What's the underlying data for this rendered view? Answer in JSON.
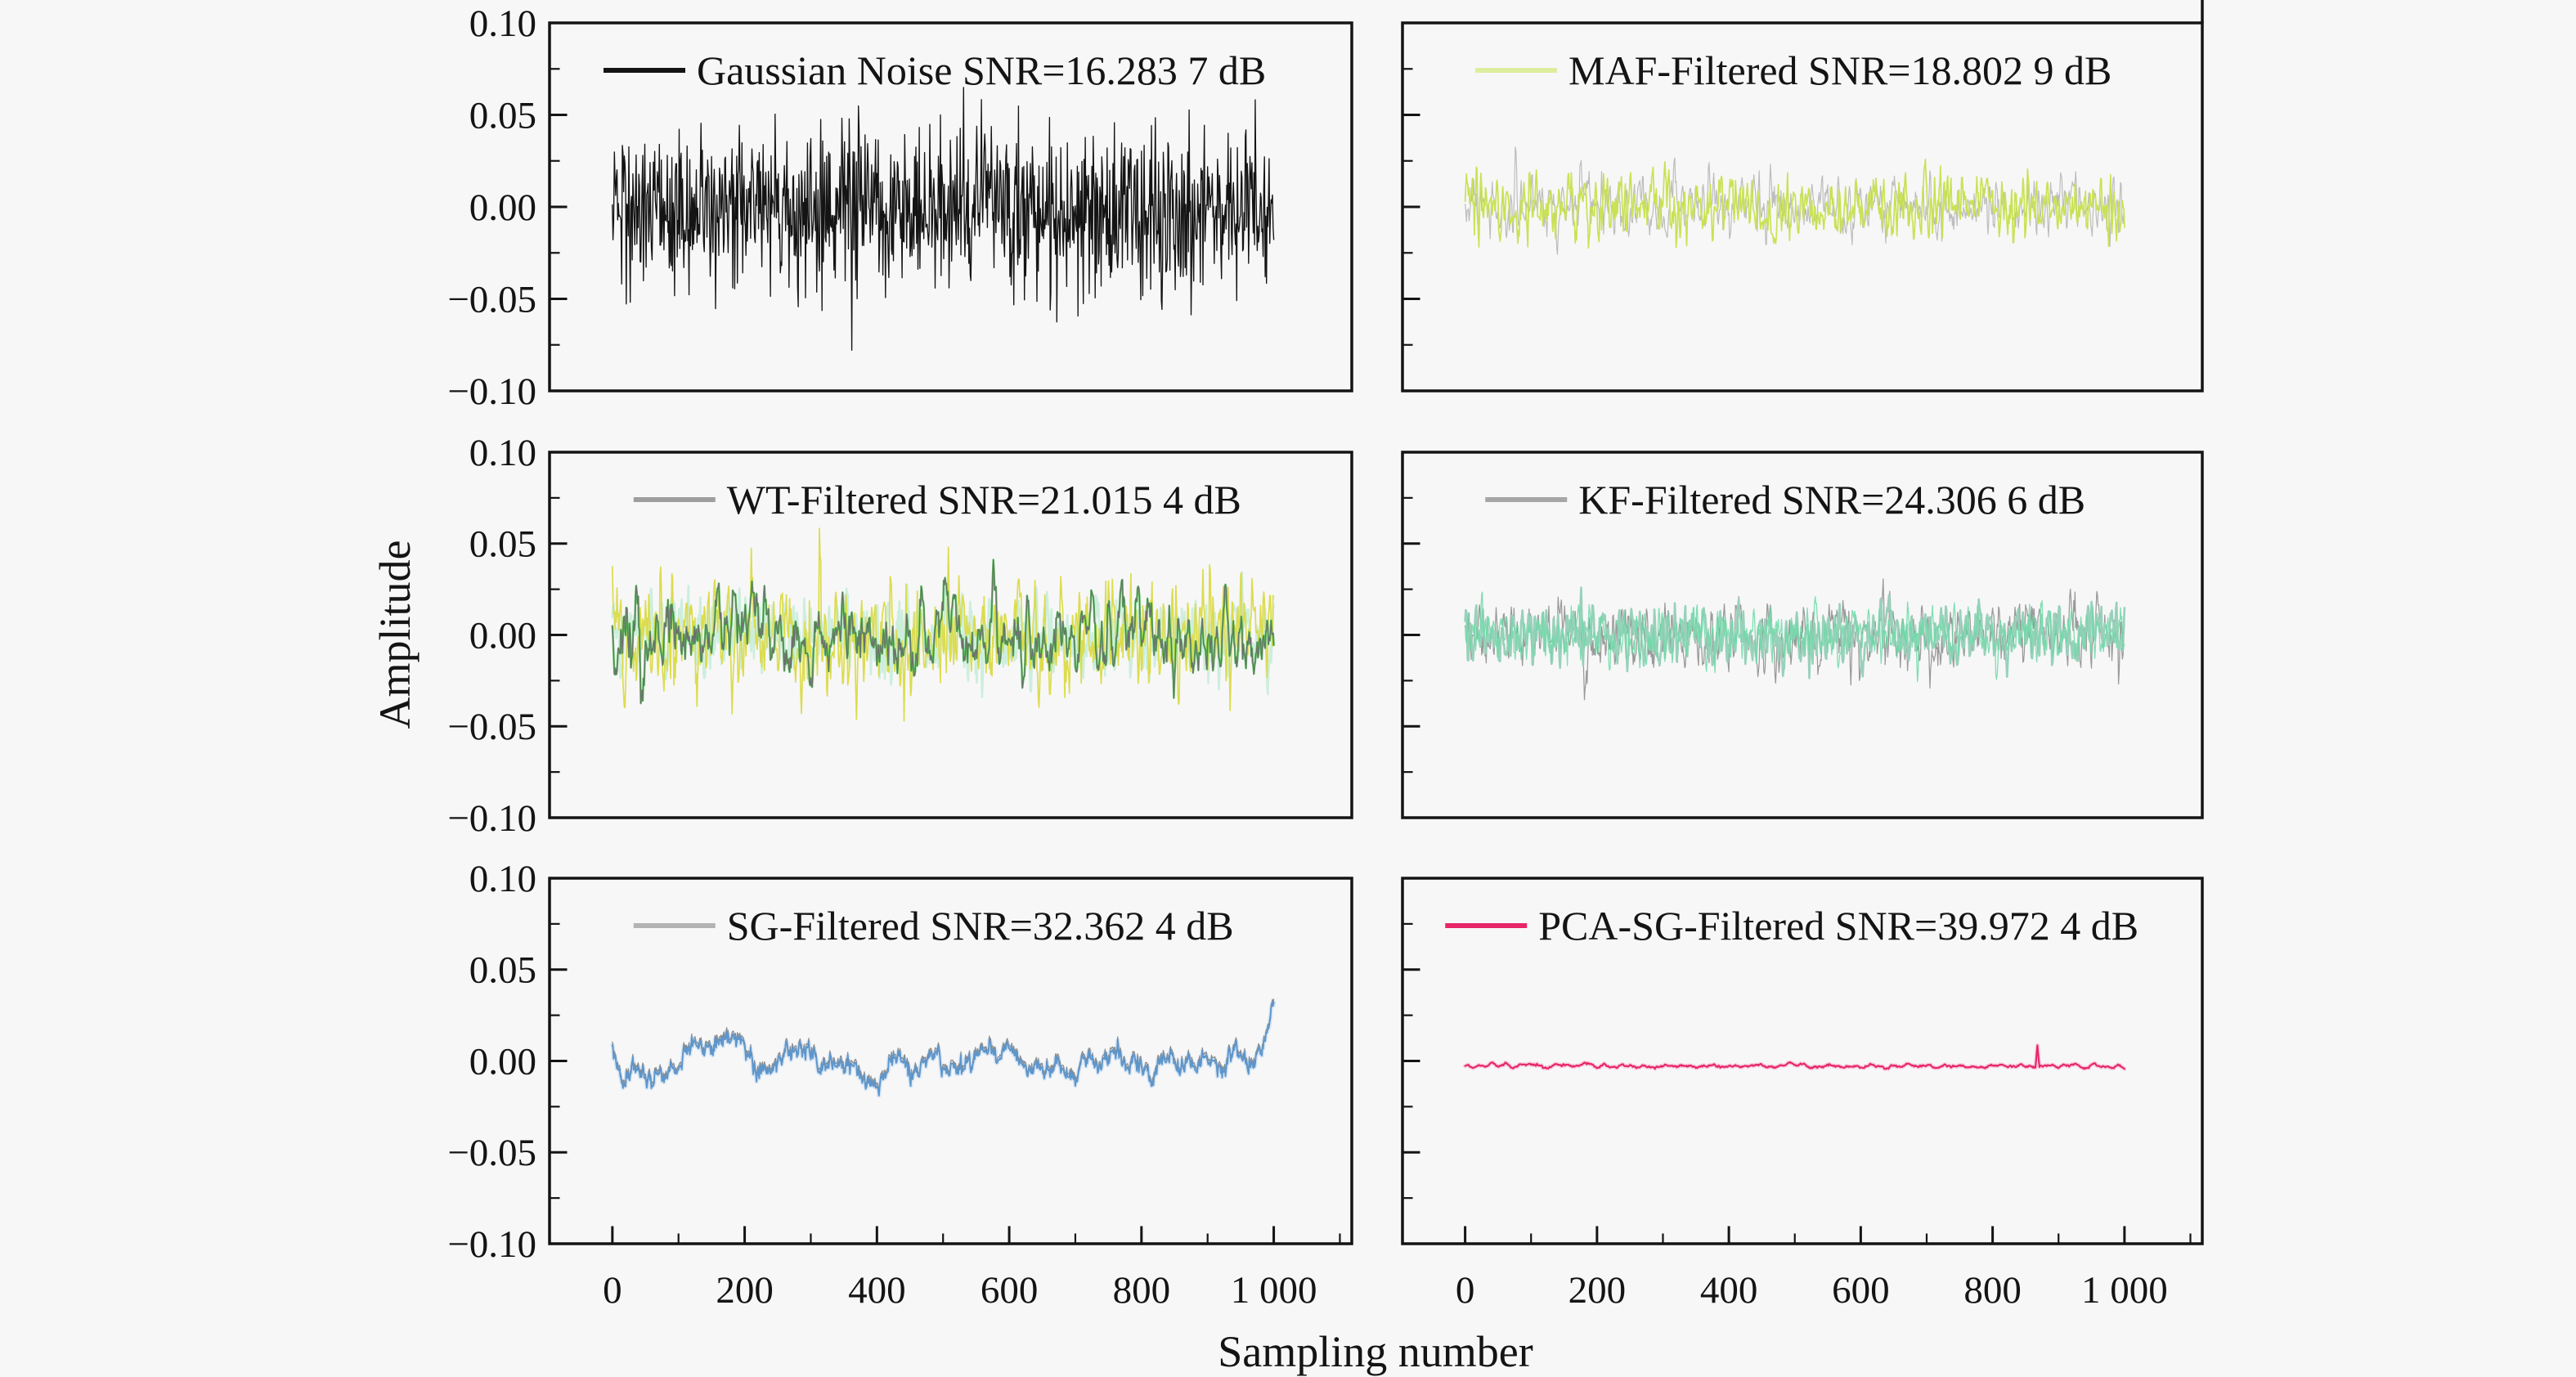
{
  "figure": {
    "background": "#f7f7f8",
    "ink_color": "#141414",
    "ylabel": "Amplitude",
    "xlabel": "Sampling number"
  },
  "chart_data": {
    "type": "line",
    "layout": "2 columns x 3 rows of subplots",
    "xlabel": "Sampling number",
    "ylabel": "Amplitude",
    "x_range_data": [
      0,
      1000
    ],
    "y_range": [
      -0.1,
      0.1
    ],
    "x_axis_view": [
      -95,
      1118
    ],
    "x_ticks": {
      "major_values": [
        0,
        200,
        400,
        600,
        800,
        1000
      ],
      "major_labels": [
        "0",
        "200",
        "400",
        "600",
        "800",
        "1 000"
      ],
      "minor_values": [
        100,
        300,
        500,
        700,
        900,
        1100
      ],
      "labels_only_on_bottom_row": true
    },
    "y_ticks": {
      "major_values": [
        0.1,
        0.05,
        0.0,
        -0.05,
        -0.1
      ],
      "major_labels": [
        "0.10",
        "0.05",
        "0.00",
        "−0.05",
        "−0.10"
      ],
      "minor_values": [
        0.075,
        0.025,
        -0.025,
        -0.075
      ],
      "labels_only_on_left_column": true
    },
    "grid": false,
    "legend_position": "inside top center of each subplot",
    "panels": [
      {
        "id": "gaussian-noise",
        "row": 0,
        "col": 0,
        "legend_label": "Gaussian Noise SNR=16.283 7 dB",
        "snr_db": "16.283 7",
        "swatch_color": "#141414",
        "signal_description": "raw gaussian noise, std ~0.023, peaks to ~±0.08",
        "layers": [
          {
            "color": "#141414",
            "lw": 1.35,
            "seed": 101,
            "std": 0.023,
            "smooth": 1
          }
        ]
      },
      {
        "id": "maf-filtered",
        "row": 0,
        "col": 1,
        "legend_label": "MAF-Filtered SNR=18.802 9 dB",
        "snr_db": "18.802 9",
        "swatch_color": "#dded9e",
        "signal_description": "yellow-green filtered noise, std ~0.011, peaks ~±0.04, faint gray underlay",
        "layers": [
          {
            "color": "#bdbdbd",
            "lw": 1.2,
            "seed": 202,
            "std": 0.014,
            "smooth": 2
          },
          {
            "color": "#c9e254",
            "lw": 1.7,
            "seed": 203,
            "std": 0.0145,
            "smooth": 2
          }
        ]
      },
      {
        "id": "wt-filtered",
        "row": 1,
        "col": 0,
        "legend_label": "WT-Filtered SNR=21.015 4 dB",
        "snr_db": "21.015 4",
        "swatch_color": "#9e9e9e",
        "signal_description": "green oscillating trace with gray edge, yellow and pale mint overlaid traces, peaks ~±0.05",
        "layers": [
          {
            "color": "#cdeedd",
            "lw": 2.6,
            "seed": 301,
            "std": 0.016,
            "smooth": 3,
            "amp": 1.2
          },
          {
            "color": "#dcdc4e",
            "lw": 1.7,
            "seed": 302,
            "std": 0.02,
            "smooth": 3,
            "amp": 1.35
          },
          {
            "color": "#4ec14f",
            "lw": 2.4,
            "seed": 303,
            "std": 0.02,
            "smooth": 6,
            "amp": 1.6
          },
          {
            "color": "#6e6e6e",
            "lw": 1.1,
            "seed": 303,
            "std": 0.02,
            "smooth": 6,
            "amp": 1.6
          }
        ]
      },
      {
        "id": "kf-filtered",
        "row": 1,
        "col": 1,
        "legend_label": "KF-Filtered SNR=24.306 6 dB",
        "snr_db": "24.306 6",
        "swatch_color": "#a6a6a6",
        "signal_description": "seafoam/teal filtered noise with gray spiky underlay, peaks ~±0.045",
        "layers": [
          {
            "color": "#9a9a9a",
            "lw": 1.25,
            "seed": 401,
            "std": 0.016,
            "smooth": 2
          },
          {
            "color": "#98d1ba",
            "lw": 2.6,
            "seed": 402,
            "std": 0.0135,
            "smooth": 2
          },
          {
            "color": "#6cd9a6",
            "lw": 1.3,
            "seed": 403,
            "std": 0.012,
            "smooth": 2,
            "opacity": 0.85
          }
        ]
      },
      {
        "id": "sg-filtered",
        "row": 2,
        "col": 0,
        "legend_label": "SG-Filtered SNR=32.362 4 dB",
        "snr_db": "32.362 4",
        "swatch_color": "#b3b3b3",
        "signal_description": "smooth slowly wandering steel-blue line, ±0.012, gray upper edge, pale blue glow",
        "layers": [
          {
            "color": "#cfe2f4",
            "lw": 5.0,
            "seed": 501,
            "std": 0.035,
            "smooth": 29,
            "amp": 1.15,
            "jitter": 0.0012,
            "opacity": 0.85
          },
          {
            "color": "#8a8a8a",
            "lw": 1.2,
            "seed": 501,
            "std": 0.035,
            "smooth": 29,
            "amp": 1.15,
            "jitter": 0.0012,
            "offset": 0.0018
          },
          {
            "color": "#5e96cb",
            "lw": 1.9,
            "seed": 501,
            "std": 0.035,
            "smooth": 29,
            "amp": 1.15,
            "jitter": 0.0012
          }
        ]
      },
      {
        "id": "pca-sg-filtered",
        "row": 2,
        "col": 1,
        "legend_label": "PCA-SG-Filtered SNR=39.972 4 dB",
        "snr_db": "39.972 4",
        "swatch_color": "#e72568",
        "signal_description": "nearly flat crimson-pink line slightly below zero (~−0.003) with one small spike near sample 870",
        "layers": [
          {
            "color": "#f7c0d6",
            "lw": 5.0,
            "seed": 601,
            "std": 0.004,
            "smooth": 9,
            "amp": 0.5,
            "offset": -0.0028,
            "opacity": 0.8,
            "spikes": [
              {
                "at": 868,
                "h": 0.0115,
                "w": 3
              }
            ]
          },
          {
            "color": "#e72568",
            "lw": 2.1,
            "seed": 601,
            "std": 0.004,
            "smooth": 9,
            "amp": 0.5,
            "offset": -0.0028,
            "spikes": [
              {
                "at": 868,
                "h": 0.0115,
                "w": 3
              }
            ]
          }
        ]
      }
    ]
  }
}
